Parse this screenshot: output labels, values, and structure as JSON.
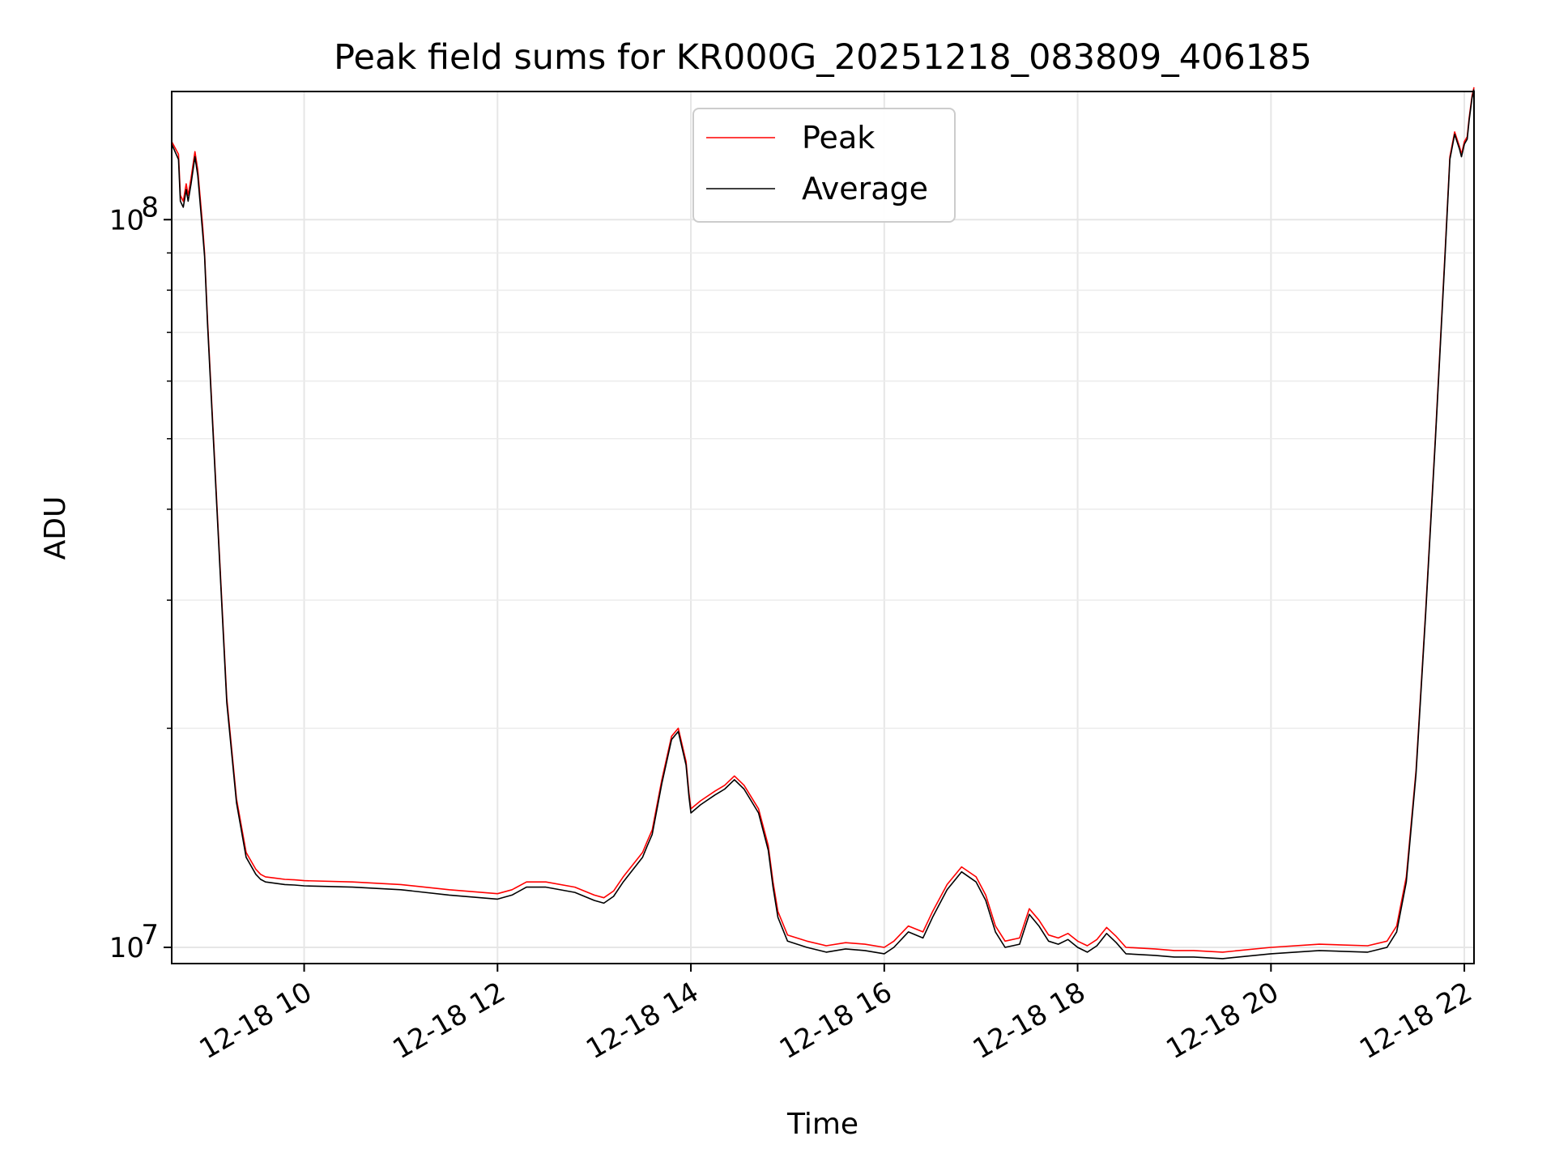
{
  "chart_data": {
    "type": "line",
    "title": "Peak field sums for KR000G_20251218_083809_406185",
    "xlabel": "Time",
    "ylabel": "ADU",
    "yscale": "log",
    "xlim": [
      8.63,
      22.1
    ],
    "ylim": [
      9500000,
      150000000
    ],
    "grid": true,
    "legend_position": "top-center",
    "x_unit": "hours on 12-18",
    "x_ticks": [
      {
        "value": 10,
        "label": "12-18 10"
      },
      {
        "value": 12,
        "label": "12-18 12"
      },
      {
        "value": 14,
        "label": "12-18 14"
      },
      {
        "value": 16,
        "label": "12-18 16"
      },
      {
        "value": 18,
        "label": "12-18 18"
      },
      {
        "value": 20,
        "label": "12-18 20"
      },
      {
        "value": 22,
        "label": "12-18 22"
      }
    ],
    "y_ticks": [
      {
        "value": 10000000,
        "base": "10",
        "exp": "7"
      },
      {
        "value": 100000000,
        "base": "10",
        "exp": "8"
      }
    ],
    "x": [
      8.63,
      8.7,
      8.72,
      8.75,
      8.78,
      8.8,
      8.83,
      8.87,
      8.9,
      8.95,
      8.97,
      9.0,
      9.1,
      9.2,
      9.3,
      9.4,
      9.5,
      9.55,
      9.6,
      9.7,
      9.8,
      9.9,
      10.0,
      10.5,
      11.0,
      11.5,
      12.0,
      12.15,
      12.3,
      12.5,
      12.8,
      13.0,
      13.1,
      13.2,
      13.3,
      13.5,
      13.55,
      13.6,
      13.7,
      13.8,
      13.87,
      13.95,
      13.98,
      14.0,
      14.1,
      14.25,
      14.35,
      14.45,
      14.55,
      14.7,
      14.8,
      14.85,
      14.9,
      15.0,
      15.2,
      15.4,
      15.6,
      15.8,
      16.0,
      16.1,
      16.25,
      16.4,
      16.5,
      16.65,
      16.8,
      16.95,
      17.05,
      17.15,
      17.25,
      17.4,
      17.5,
      17.6,
      17.7,
      17.8,
      17.9,
      18.0,
      18.1,
      18.2,
      18.3,
      18.4,
      18.5,
      18.8,
      19.0,
      19.2,
      19.5,
      20.0,
      20.5,
      21.0,
      21.2,
      21.3,
      21.4,
      21.5,
      21.6,
      21.7,
      21.8,
      21.85,
      21.9,
      21.95,
      21.97,
      22.0,
      22.03,
      22.05,
      22.08,
      22.1
    ],
    "series": [
      {
        "name": "Peak",
        "color": "#ff0000",
        "values": [
          128000000,
          123000000,
          108000000,
          106000000,
          112000000,
          108000000,
          114000000,
          124000000,
          117000000,
          98000000,
          90000000,
          73000000,
          40000000,
          22000000,
          16000000,
          13500000,
          12800000,
          12600000,
          12500000,
          12450000,
          12400000,
          12380000,
          12350000,
          12300000,
          12200000,
          12000000,
          11850000,
          12000000,
          12300000,
          12300000,
          12100000,
          11800000,
          11700000,
          11950000,
          12500000,
          13500000,
          14000000,
          14500000,
          17000000,
          19500000,
          20000000,
          18000000,
          16300000,
          15500000,
          15900000,
          16400000,
          16700000,
          17200000,
          16700000,
          15500000,
          13800000,
          12300000,
          11200000,
          10400000,
          10200000,
          10050000,
          10150000,
          10100000,
          10000000,
          10200000,
          10700000,
          10500000,
          11200000,
          12200000,
          12900000,
          12500000,
          11800000,
          10700000,
          10200000,
          10300000,
          11300000,
          10900000,
          10400000,
          10300000,
          10450000,
          10200000,
          10050000,
          10250000,
          10650000,
          10350000,
          10000000,
          9950000,
          9900000,
          9900000,
          9850000,
          10000000,
          10100000,
          10050000,
          10200000,
          10700000,
          12500000,
          17500000,
          29000000,
          50000000,
          90000000,
          122000000,
          132000000,
          126000000,
          123000000,
          128000000,
          130000000,
          138000000,
          148000000,
          152000000
        ]
      },
      {
        "name": "Average",
        "color": "#000000",
        "values": [
          127000000,
          121000000,
          106000000,
          104000000,
          110000000,
          106000000,
          112000000,
          122000000,
          115000000,
          96000000,
          89000000,
          72000000,
          39500000,
          21700000,
          15800000,
          13300000,
          12600000,
          12400000,
          12300000,
          12250000,
          12200000,
          12180000,
          12150000,
          12100000,
          12000000,
          11800000,
          11650000,
          11800000,
          12100000,
          12100000,
          11900000,
          11600000,
          11500000,
          11750000,
          12300000,
          13300000,
          13800000,
          14300000,
          16800000,
          19300000,
          19800000,
          17800000,
          16100000,
          15300000,
          15700000,
          16200000,
          16500000,
          17000000,
          16500000,
          15300000,
          13600000,
          12100000,
          11000000,
          10200000,
          10000000,
          9850000,
          9950000,
          9900000,
          9800000,
          10000000,
          10500000,
          10300000,
          11000000,
          12000000,
          12700000,
          12300000,
          11600000,
          10500000,
          10000000,
          10100000,
          11100000,
          10700000,
          10200000,
          10100000,
          10250000,
          10000000,
          9850000,
          10050000,
          10450000,
          10150000,
          9800000,
          9750000,
          9700000,
          9700000,
          9650000,
          9800000,
          9900000,
          9850000,
          10000000,
          10500000,
          12300000,
          17300000,
          28700000,
          49500000,
          89000000,
          121000000,
          131000000,
          125000000,
          122000000,
          127000000,
          129000000,
          137000000,
          147000000,
          151000000
        ]
      }
    ]
  }
}
